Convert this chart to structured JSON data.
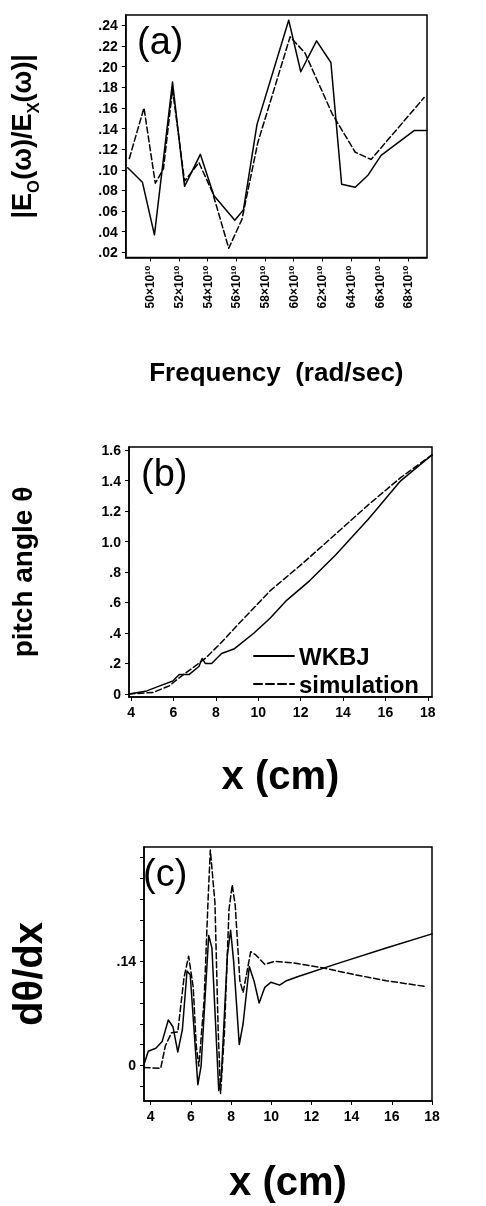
{
  "chart_data": [
    {
      "type": "line",
      "title": "(a)",
      "xlabel": "Frequency  (rad/sec)",
      "ylabel": "|E$_{O}$(ω)/E$_{X}$(ω)|",
      "marker": "none",
      "grid": false,
      "xlim": [
        483000000000.0,
        693000000000.0
      ],
      "ylim": [
        0.015,
        0.25
      ],
      "xticks": [
        {
          "value": 500000000000.0,
          "label": "50×10¹⁰"
        },
        {
          "value": 520000000000.0,
          "label": "52×10¹⁰"
        },
        {
          "value": 540000000000.0,
          "label": "54×10¹⁰"
        },
        {
          "value": 560000000000.0,
          "label": "56×10¹⁰"
        },
        {
          "value": 580000000000.0,
          "label": "58×10¹⁰"
        },
        {
          "value": 600000000000.0,
          "label": "60×10¹⁰"
        },
        {
          "value": 620000000000.0,
          "label": "62×10¹⁰"
        },
        {
          "value": 640000000000.0,
          "label": "64×10¹⁰"
        },
        {
          "value": 660000000000.0,
          "label": "66×10¹⁰"
        },
        {
          "value": 680000000000.0,
          "label": "68×10¹⁰"
        }
      ],
      "yticks": [
        {
          "value": 0.02,
          "label": ".02"
        },
        {
          "value": 0.04,
          "label": ".04"
        },
        {
          "value": 0.06,
          "label": ".06"
        },
        {
          "value": 0.08,
          "label": ".08"
        },
        {
          "value": 0.1,
          "label": ".10"
        },
        {
          "value": 0.12,
          "label": ".12"
        },
        {
          "value": 0.14,
          "label": ".14"
        },
        {
          "value": 0.16,
          "label": ".16"
        },
        {
          "value": 0.18,
          "label": ".18"
        },
        {
          "value": 0.2,
          "label": ".20"
        },
        {
          "value": 0.22,
          "label": ".22"
        },
        {
          "value": 0.24,
          "label": ".24"
        }
      ],
      "series": [
        {
          "color": "#000000",
          "line_style": "solid",
          "x": [
            484400000000.0,
            494600000000.0,
            503000000000.0,
            515600000000.0,
            524000000000.0,
            535000000000.0,
            544400000000.0,
            559000000000.0,
            565000000000.0,
            574500000000.0,
            596600000000.0,
            605000000000.0,
            616000000000.0,
            626000000000.0,
            633500000000.0,
            643000000000.0,
            652000000000.0,
            661000000000.0,
            684000000000.0,
            693000000000.0
          ],
          "values": [
            0.102,
            0.088,
            0.037,
            0.185,
            0.084,
            0.115,
            0.075,
            0.051,
            0.061,
            0.144,
            0.245,
            0.195,
            0.225,
            0.204,
            0.086,
            0.083,
            0.095,
            0.114,
            0.138,
            0.138
          ]
        },
        {
          "color": "#000000",
          "line_style": "dashed",
          "x": [
            485500000000.0,
            495700000000.0,
            503600000000.0,
            509300000000.0,
            515600000000.0,
            524000000000.0,
            534000000000.0,
            543500000000.0,
            554800000000.0,
            564000000000.0,
            575000000000.0,
            597600000000.0,
            608000000000.0,
            627000000000.0,
            643000000000.0,
            654000000000.0,
            691000000000.0
          ],
          "values": [
            0.111,
            0.16,
            0.087,
            0.101,
            0.178,
            0.089,
            0.107,
            0.078,
            0.024,
            0.052,
            0.126,
            0.229,
            0.213,
            0.154,
            0.117,
            0.11,
            0.17
          ]
        }
      ]
    },
    {
      "type": "line",
      "title": "(b)",
      "xlabel": "x (cm)",
      "ylabel": "pitch angle θ",
      "marker": "none",
      "grid": false,
      "legend": "bottom right",
      "xlim": [
        3.9,
        18.2
      ],
      "ylim": [
        -0.02,
        1.62
      ],
      "xticks": [
        4,
        6,
        8,
        10,
        12,
        14,
        16,
        18
      ],
      "yticks": [
        0,
        {
          "value": 0.2,
          "label": ".2"
        },
        {
          "value": 0.4,
          "label": ".4"
        },
        {
          "value": 0.6,
          "label": ".6"
        },
        {
          "value": 0.8,
          "label": ".8"
        },
        {
          "value": 1.0,
          "label": "1.0"
        },
        {
          "value": 1.2,
          "label": "1.2"
        },
        {
          "value": 1.4,
          "label": "1.4"
        },
        {
          "value": 1.6,
          "label": "1.6"
        }
      ],
      "series": [
        {
          "name": "WKBJ",
          "color": "#000000",
          "line_style": "solid",
          "x": [
            3.9,
            4.74,
            5.35,
            5.97,
            6.27,
            6.73,
            7.2,
            7.35,
            7.5,
            7.8,
            8.27,
            8.88,
            9.8,
            10.57,
            11.34,
            12.42,
            13.65,
            15.18,
            16.72,
            18.2
          ],
          "values": [
            0.0,
            0.02,
            0.053,
            0.085,
            0.127,
            0.127,
            0.18,
            0.233,
            0.2,
            0.2,
            0.265,
            0.297,
            0.4,
            0.498,
            0.614,
            0.742,
            0.911,
            1.144,
            1.398,
            1.568
          ]
        },
        {
          "name": "simulation",
          "color": "#000000",
          "line_style": "dashed",
          "x": [
            3.9,
            5.04,
            5.8,
            6.27,
            6.89,
            7.5,
            8.27,
            9.04,
            10.57,
            12.11,
            13.65,
            15.18,
            16.72,
            18.2
          ],
          "values": [
            0.0,
            0.01,
            0.053,
            0.106,
            0.17,
            0.233,
            0.339,
            0.455,
            0.678,
            0.858,
            1.049,
            1.239,
            1.419,
            1.568
          ]
        }
      ]
    },
    {
      "type": "line",
      "title": "(c)",
      "xlabel": "x (cm)",
      "ylabel": "dθ/dx",
      "marker": "none",
      "grid": false,
      "xlim": [
        3.67,
        18
      ],
      "ylim": [
        -0.048,
        0.294
      ],
      "xticks": [
        4,
        6,
        8,
        10,
        12,
        14,
        16,
        18
      ],
      "yticks": [
        {
          "value": -0.028,
          "label": null
        },
        0,
        {
          "value": 0.028,
          "label": null
        },
        {
          "value": 0.056,
          "label": null
        },
        {
          "value": 0.084,
          "label": null
        },
        {
          "value": 0.112,
          "label": null
        },
        {
          "value": 0.14,
          "label": ".14"
        },
        {
          "value": 0.168,
          "label": null
        },
        {
          "value": 0.196,
          "label": null
        },
        {
          "value": 0.224,
          "label": null
        },
        {
          "value": 0.252,
          "label": null
        },
        {
          "value": 0.28,
          "label": null
        }
      ],
      "series": [
        {
          "color": "#000000",
          "line_style": "solid",
          "x": [
            3.67,
            3.88,
            4.26,
            4.57,
            4.88,
            5.11,
            5.35,
            5.58,
            5.81,
            5.97,
            6.35,
            6.51,
            6.89,
            7.05,
            7.39,
            7.51,
            7.82,
            7.98,
            8.13,
            8.41,
            8.6,
            8.91,
            9.14,
            9.4,
            9.68,
            9.99,
            10.42,
            10.76,
            11.38,
            13.4,
            15.72,
            18.0
          ],
          "values": [
            0.001,
            0.019,
            0.023,
            0.032,
            0.061,
            0.052,
            0.018,
            0.048,
            0.127,
            0.122,
            -0.026,
            -0.001,
            0.175,
            0.158,
            -0.034,
            -0.018,
            0.149,
            0.182,
            0.14,
            0.028,
            0.056,
            0.133,
            0.114,
            0.084,
            0.105,
            0.112,
            0.108,
            0.114,
            0.12,
            0.138,
            0.158,
            0.177
          ]
        },
        {
          "color": "#000000",
          "line_style": "dashed",
          "x": [
            3.67,
            4.5,
            4.73,
            5.04,
            5.35,
            5.66,
            5.89,
            6.12,
            6.27,
            6.4,
            6.66,
            6.86,
            6.97,
            7.2,
            7.36,
            7.48,
            7.67,
            7.9,
            8.06,
            8.21,
            8.44,
            8.6,
            8.98,
            9.22,
            9.68,
            10.15,
            11.07,
            12.62,
            14.17,
            15.72,
            17.73
          ],
          "values": [
            -0.003,
            -0.004,
            0.026,
            0.044,
            0.045,
            0.118,
            0.147,
            0.105,
            0.026,
            -0.001,
            0.087,
            0.224,
            0.29,
            0.219,
            0.048,
            -0.038,
            0.043,
            0.21,
            0.243,
            0.215,
            0.114,
            0.098,
            0.153,
            0.149,
            0.136,
            0.14,
            0.138,
            0.131,
            0.122,
            0.114,
            0.106
          ]
        }
      ]
    }
  ]
}
